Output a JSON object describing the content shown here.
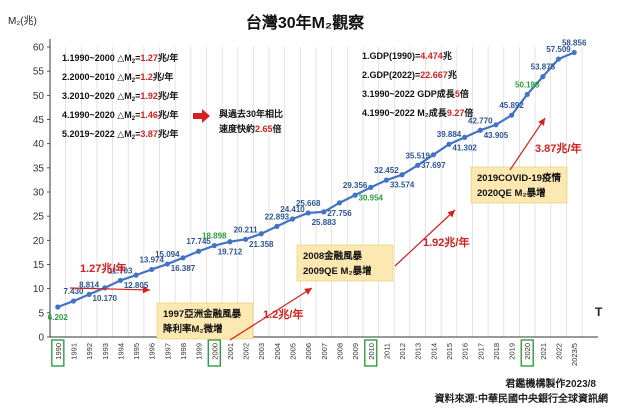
{
  "chart_data": {
    "type": "line",
    "title": "台灣30年M₂觀察",
    "ylabel": "M₂(兆)",
    "xlabel": "T",
    "ylim": [
      0,
      60
    ],
    "yticks": [
      0,
      5,
      10,
      15,
      20,
      25,
      30,
      35,
      40,
      45,
      50,
      55,
      60
    ],
    "grid": "vertical",
    "categories": [
      "1990",
      "1991",
      "1992",
      "1993",
      "1994",
      "1995",
      "1996",
      "1997",
      "1998",
      "1999",
      "2000",
      "2001",
      "2002",
      "2003",
      "2004",
      "2005",
      "2006",
      "2007",
      "2008",
      "2009",
      "2010",
      "2011",
      "2012",
      "2013",
      "2014",
      "2015",
      "2016",
      "2017",
      "2018",
      "2019",
      "2020",
      "2021",
      "2022",
      "2023/5"
    ],
    "series": [
      {
        "values": [
          6.202,
          7.43,
          8.814,
          10.17,
          11.703,
          12.805,
          13.974,
          15.094,
          16.387,
          17.745,
          18.898,
          19.712,
          20.211,
          21.358,
          22.893,
          24.41,
          25.668,
          25.883,
          27.756,
          29.356,
          30.954,
          32.452,
          33.574,
          35.519,
          37.697,
          39.884,
          41.302,
          42.77,
          43.905,
          45.892,
          50.188,
          53.875,
          57.509,
          58.856
        ],
        "labels": [
          "6.202",
          "7.430",
          "8.814",
          "10.170",
          "11.703",
          "12.805",
          "13.974",
          "15.094",
          "16.387",
          "17.745",
          "18.898",
          "19.712",
          "20.211",
          "21.358",
          "22.893",
          "24.410",
          "25.668",
          "25.883",
          "27.756",
          "29.356",
          "30.954",
          "32.452",
          "33.574",
          "35.519",
          "37.697",
          "39.884",
          "41.302",
          "42.770",
          "43.905",
          "45.892",
          "50.188",
          "53.875",
          "57.509",
          "58.856"
        ],
        "label_pos": [
          "below",
          "above",
          "above",
          "below",
          "above",
          "below",
          "above",
          "above",
          "below",
          "above",
          "above",
          "below",
          "above",
          "below",
          "above",
          "above",
          "above",
          "below",
          "below",
          "above",
          "below",
          "above",
          "below",
          "above",
          "below",
          "above",
          "below",
          "above",
          "below",
          "above",
          "above",
          "above",
          "above",
          "above"
        ],
        "label_color": [
          "green",
          "blue",
          "blue",
          "blue",
          "blue",
          "blue",
          "blue",
          "blue",
          "blue",
          "blue",
          "green",
          "blue",
          "blue",
          "blue",
          "blue",
          "blue",
          "blue",
          "blue",
          "blue",
          "blue",
          "green",
          "blue",
          "blue",
          "blue",
          "blue",
          "blue",
          "blue",
          "blue",
          "blue",
          "blue",
          "green",
          "blue",
          "blue",
          "blue"
        ],
        "color": "#4472C4"
      }
    ],
    "highlighted_years": [
      "1990",
      "2000",
      "2010",
      "2020"
    ]
  },
  "notes_left": [
    {
      "pre": "1.1990~2000 △M",
      "sub": "2",
      "eq": "=",
      "val": "1.27",
      "unit": "兆/年"
    },
    {
      "pre": "2.2000~2010 △M",
      "sub": "2",
      "eq": "=",
      "val": "1.2",
      "unit": "兆/年"
    },
    {
      "pre": "3.2010~2020 △M",
      "sub": "2",
      "eq": "=",
      "val": "1.92",
      "unit": "兆/年"
    },
    {
      "pre": "4.1990~2020 △M",
      "sub": "2",
      "eq": "=",
      "val": "1.46",
      "unit": "兆/年"
    },
    {
      "pre": "5.2019~2022 △M",
      "sub": "2",
      "eq": "=",
      "val": "3.87",
      "unit": "兆/年"
    }
  ],
  "notes_compare": {
    "line1": "與過去30年相比",
    "line2_pre": "速度快約",
    "line2_val": "2.65",
    "line2_post": "倍"
  },
  "notes_right": [
    {
      "pre": "1.GDP(1990)=",
      "val": "4.474",
      "post": "兆"
    },
    {
      "pre": "2.GDP(2022)=",
      "val": "22.667",
      "post": "兆"
    },
    {
      "pre": "3.1990~2022 GDP成長",
      "val": "5",
      "post": "倍"
    },
    {
      "pre": "4.1990~2022 M₂成長",
      "val": "9.27",
      "post": "倍"
    }
  ],
  "events": [
    {
      "line1": "1997亞洲金融風暴",
      "line2": "降利率M₂微增"
    },
    {
      "line1": "2008金融風暴",
      "line2": "2009QE M₂暴增"
    },
    {
      "line1": "2019COVID-19疫情",
      "line2": "2020QE M₂暴增"
    }
  ],
  "rates": [
    {
      "val": "1.27",
      "unit": "兆/年"
    },
    {
      "val": "1.2",
      "unit": "兆/年"
    },
    {
      "val": "1.92",
      "unit": "兆/年"
    },
    {
      "val": "3.87",
      "unit": "兆/年"
    }
  ],
  "credit": "君鑑機構製作2023/8",
  "source": "資料來源:中華民國中央銀行全球資訊網",
  "colors": {
    "line": "#4472C4",
    "label_blue": "#2E5597",
    "label_green": "#2E9E3E",
    "accent_red": "#D42020",
    "event_box": "#FCE9B2",
    "axis": "#333333",
    "grid": "#D9D9D9"
  }
}
